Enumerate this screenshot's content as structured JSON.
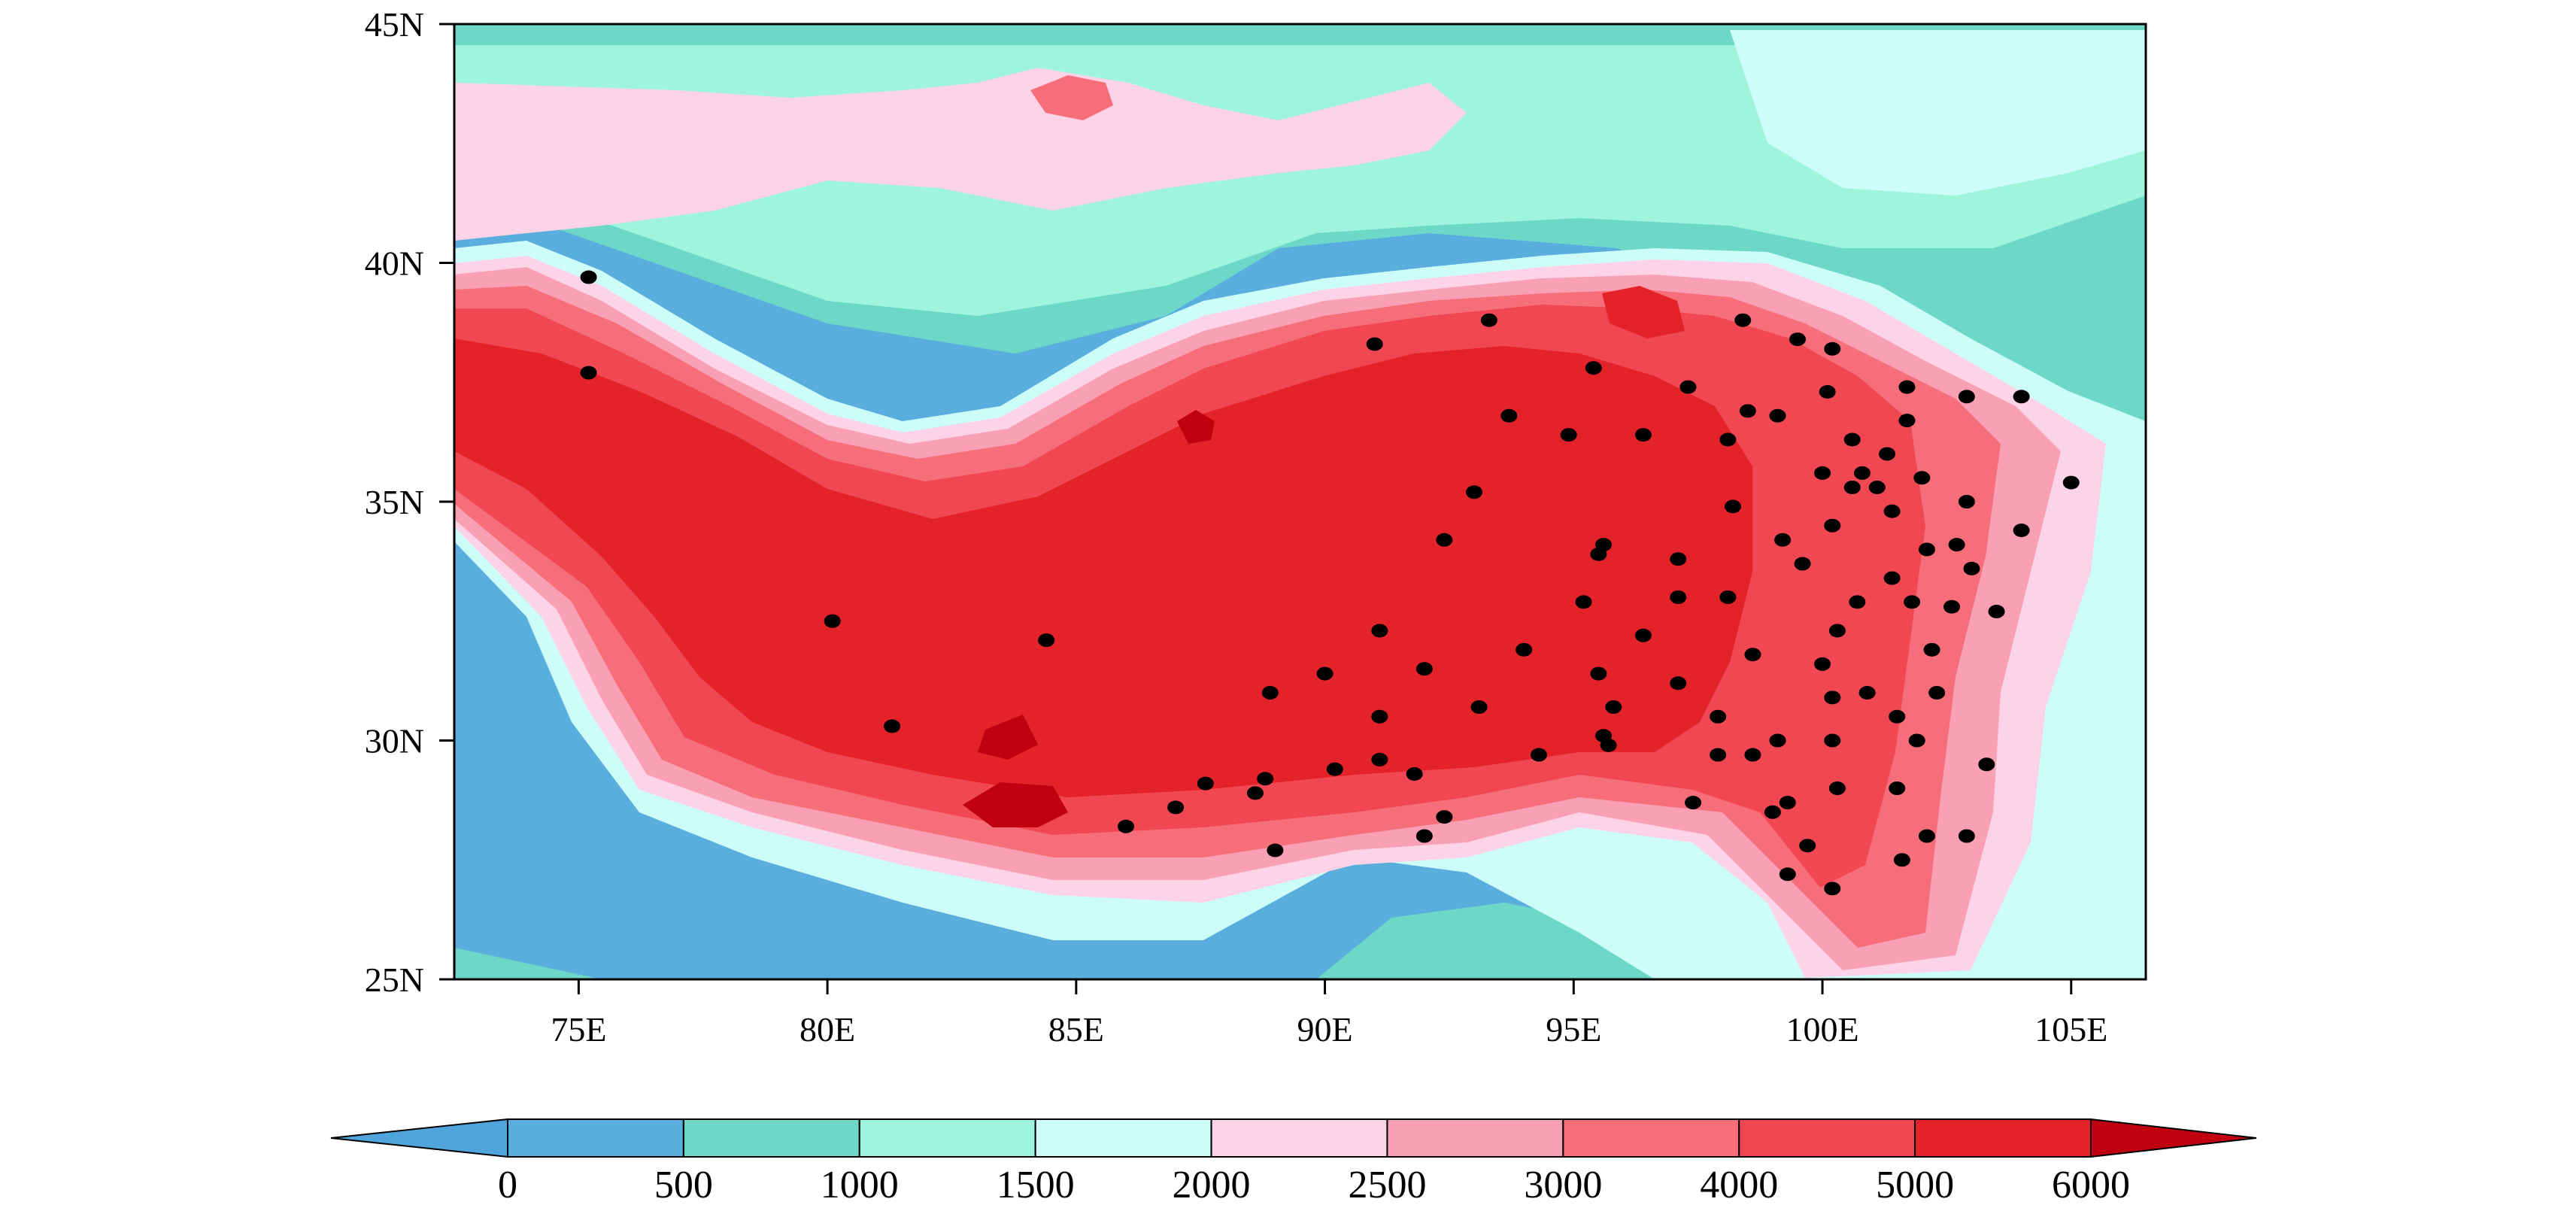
{
  "map": {
    "x_axis": {
      "ticks": [
        "75E",
        "80E",
        "85E",
        "90E",
        "95E",
        "100E",
        "105E"
      ],
      "lon_values": [
        75,
        80,
        85,
        90,
        95,
        100,
        105
      ],
      "range": [
        72.5,
        106.5
      ]
    },
    "y_axis": {
      "ticks": [
        "25N",
        "30N",
        "35N",
        "40N",
        "45N"
      ],
      "lat_values": [
        25,
        30,
        35,
        40,
        45
      ],
      "range": [
        25,
        45
      ]
    },
    "station_markers": {
      "color": "#000000",
      "marker": "filled-dot"
    },
    "field_levels": [
      {
        "min": 0,
        "max": 500,
        "color": "#5aaedd"
      },
      {
        "min": 500,
        "max": 1000,
        "color": "#6ed8c8"
      },
      {
        "min": 1000,
        "max": 1500,
        "color": "#9ef5dc"
      },
      {
        "min": 1500,
        "max": 2000,
        "color": "#cdfdf9"
      },
      {
        "min": 2000,
        "max": 2500,
        "color": "#fdd3e8"
      },
      {
        "min": 2500,
        "max": 3000,
        "color": "#f9a0b4"
      },
      {
        "min": 3000,
        "max": 4000,
        "color": "#f76e7b"
      },
      {
        "min": 4000,
        "max": 5000,
        "color": "#f14753"
      },
      {
        "min": 5000,
        "max": 6000,
        "color": "#e42229"
      },
      {
        "min": 6000,
        "max": null,
        "color": "#c00010"
      }
    ],
    "under_color": "#4fa4dc"
  },
  "colorbar": {
    "labels": [
      "0",
      "500",
      "1000",
      "1500",
      "2000",
      "2500",
      "3000",
      "4000",
      "5000",
      "6000"
    ]
  },
  "stations": [
    [
      75.2,
      39.7
    ],
    [
      75.2,
      37.7
    ],
    [
      80.1,
      32.5
    ],
    [
      81.3,
      30.3
    ],
    [
      84.4,
      32.1
    ],
    [
      86.0,
      28.2
    ],
    [
      87.0,
      28.6
    ],
    [
      87.6,
      29.1
    ],
    [
      88.9,
      31.0
    ],
    [
      88.8,
      29.2
    ],
    [
      88.6,
      28.9
    ],
    [
      89.0,
      27.7
    ],
    [
      90.0,
      31.4
    ],
    [
      90.2,
      29.4
    ],
    [
      91.1,
      32.3
    ],
    [
      91.1,
      30.5
    ],
    [
      91.1,
      29.6
    ],
    [
      91.8,
      29.3
    ],
    [
      92.0,
      31.5
    ],
    [
      92.0,
      28.0
    ],
    [
      92.4,
      28.4
    ],
    [
      92.4,
      34.2
    ],
    [
      93.0,
      35.2
    ],
    [
      93.3,
      38.8
    ],
    [
      93.7,
      36.8
    ],
    [
      94.0,
      31.9
    ],
    [
      94.3,
      29.7
    ],
    [
      91.0,
      38.3
    ],
    [
      93.1,
      30.7
    ],
    [
      94.9,
      36.4
    ],
    [
      95.4,
      37.8
    ],
    [
      95.2,
      32.9
    ],
    [
      95.6,
      34.1
    ],
    [
      95.5,
      33.9
    ],
    [
      95.5,
      31.4
    ],
    [
      95.8,
      30.7
    ],
    [
      95.6,
      30.1
    ],
    [
      95.7,
      29.9
    ],
    [
      96.4,
      36.4
    ],
    [
      96.4,
      32.2
    ],
    [
      97.1,
      33.8
    ],
    [
      97.1,
      33.0
    ],
    [
      97.1,
      31.2
    ],
    [
      97.3,
      37.4
    ],
    [
      97.4,
      28.7
    ],
    [
      97.9,
      30.5
    ],
    [
      97.9,
      29.7
    ],
    [
      98.1,
      36.3
    ],
    [
      98.1,
      33.0
    ],
    [
      98.2,
      34.9
    ],
    [
      98.4,
      38.8
    ],
    [
      98.5,
      36.9
    ],
    [
      98.6,
      31.8
    ],
    [
      98.6,
      29.7
    ],
    [
      99.0,
      28.5
    ],
    [
      99.1,
      36.8
    ],
    [
      99.1,
      30.0
    ],
    [
      99.2,
      34.2
    ],
    [
      99.3,
      28.7
    ],
    [
      99.3,
      27.2
    ],
    [
      99.5,
      38.4
    ],
    [
      99.6,
      33.7
    ],
    [
      99.7,
      27.8
    ],
    [
      100.0,
      35.6
    ],
    [
      100.0,
      31.6
    ],
    [
      100.1,
      37.3
    ],
    [
      100.2,
      38.2
    ],
    [
      100.2,
      34.5
    ],
    [
      100.2,
      30.9
    ],
    [
      100.2,
      30.0
    ],
    [
      100.2,
      26.9
    ],
    [
      100.3,
      32.3
    ],
    [
      100.3,
      29.0
    ],
    [
      100.6,
      36.3
    ],
    [
      100.6,
      35.3
    ],
    [
      100.7,
      32.9
    ],
    [
      100.8,
      35.6
    ],
    [
      100.9,
      31.0
    ],
    [
      101.1,
      35.3
    ],
    [
      101.3,
      36.0
    ],
    [
      101.4,
      34.8
    ],
    [
      101.4,
      33.4
    ],
    [
      101.5,
      30.5
    ],
    [
      101.5,
      29.0
    ],
    [
      101.6,
      27.5
    ],
    [
      101.7,
      37.4
    ],
    [
      101.7,
      36.7
    ],
    [
      101.8,
      32.9
    ],
    [
      101.9,
      30.0
    ],
    [
      102.0,
      35.5
    ],
    [
      102.1,
      34.0
    ],
    [
      102.2,
      31.9
    ],
    [
      102.1,
      28.0
    ],
    [
      102.3,
      31.0
    ],
    [
      102.6,
      32.8
    ],
    [
      102.7,
      34.1
    ],
    [
      102.9,
      37.2
    ],
    [
      102.9,
      35.0
    ],
    [
      103.0,
      33.6
    ],
    [
      102.9,
      28.0
    ],
    [
      103.3,
      29.5
    ],
    [
      103.5,
      32.7
    ],
    [
      104.0,
      37.2
    ],
    [
      104.0,
      34.4
    ],
    [
      105.0,
      35.4
    ]
  ]
}
